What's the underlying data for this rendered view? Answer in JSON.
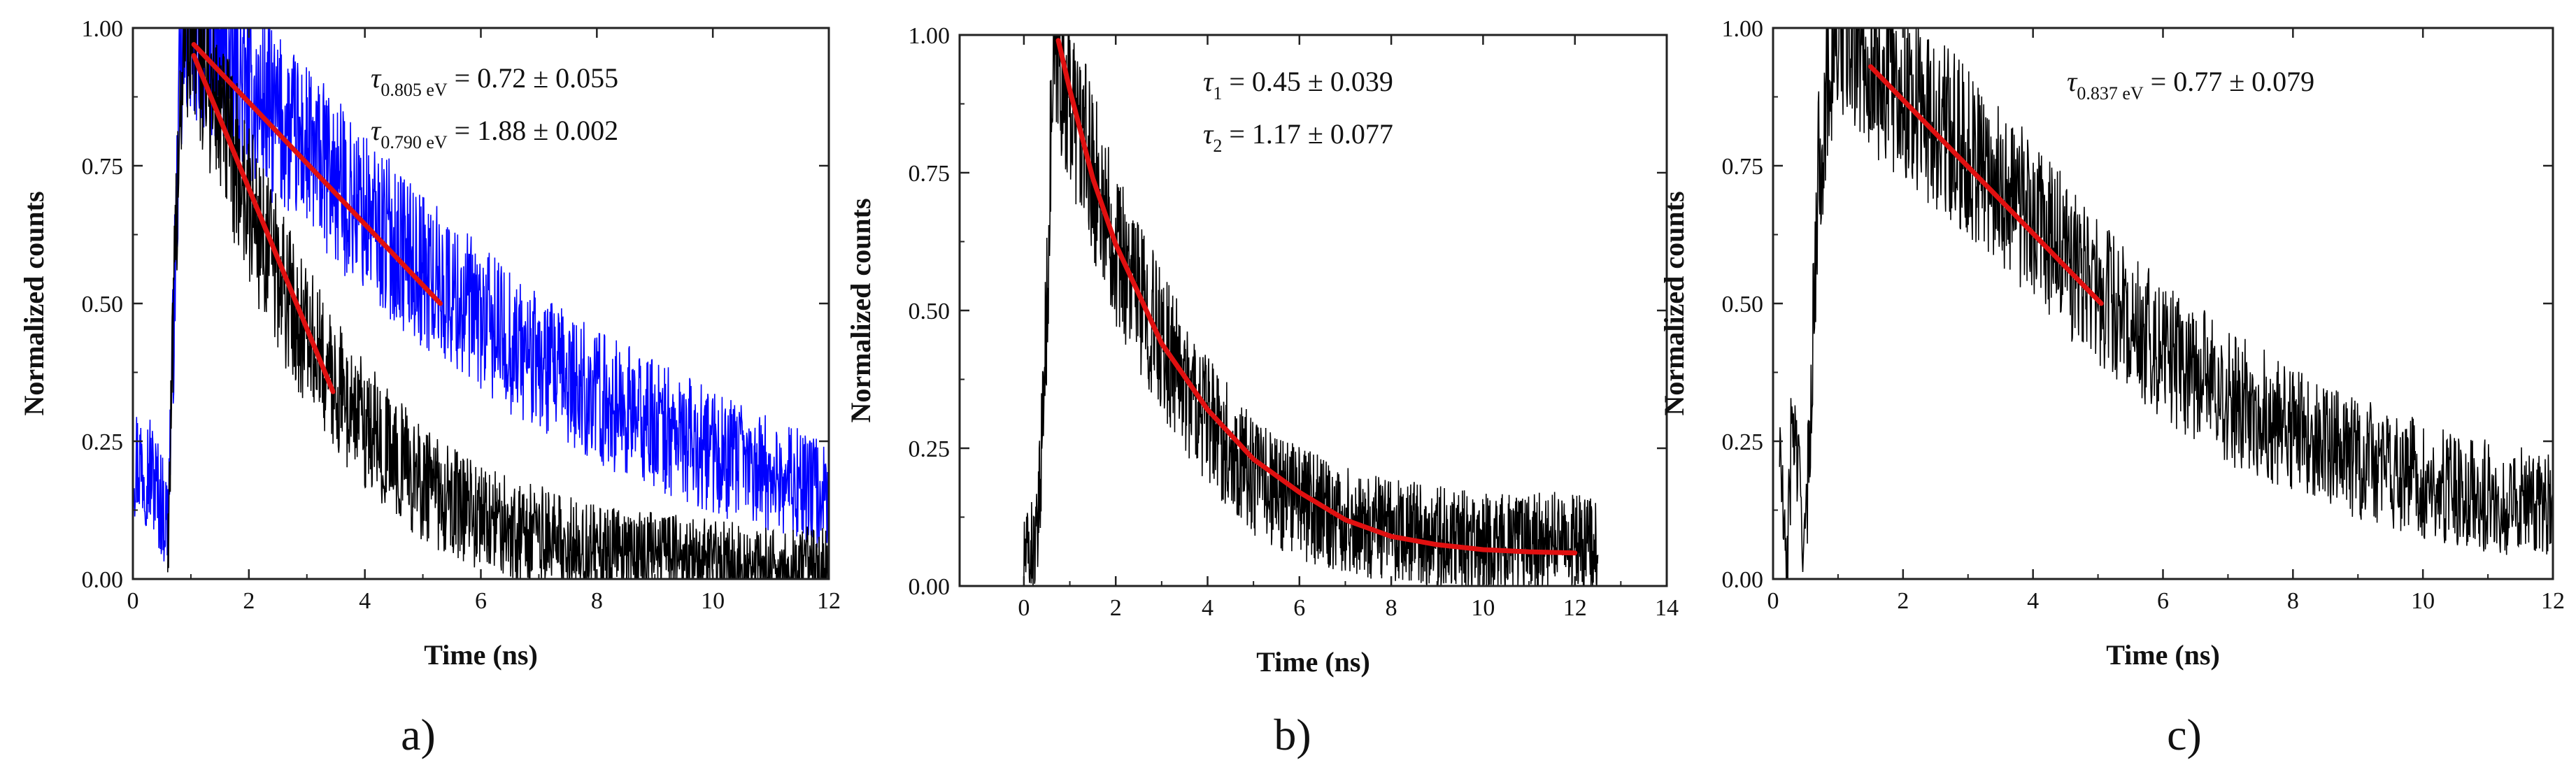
{
  "chart_data": [
    {
      "type": "line",
      "panel_label": "a)",
      "xlabel": "Time (ns)",
      "ylabel": "Normalized counts",
      "xlim": [
        0,
        12
      ],
      "ylim": [
        0,
        1.0
      ],
      "xticks": [
        0,
        2,
        4,
        6,
        8,
        10,
        12
      ],
      "xtick_labels": [
        "0",
        "2",
        "4",
        "6",
        "8",
        "10",
        "12"
      ],
      "yticks": [
        0,
        0.25,
        0.5,
        0.75,
        1.0
      ],
      "ytick_labels": [
        "0.00",
        "0.25",
        "0.50",
        "0.75",
        "1.00"
      ],
      "series": [
        {
          "color": "#0000ff",
          "kind": "data",
          "x": [
            0,
            0.3,
            0.6,
            0.7,
            0.8,
            0.9,
            1.0,
            1.5,
            2,
            3,
            4,
            5,
            6,
            7,
            8,
            9,
            10,
            11,
            12
          ],
          "y": [
            0.22,
            0.2,
            0.1,
            0.45,
            0.85,
            0.97,
            1.0,
            0.95,
            0.88,
            0.78,
            0.66,
            0.56,
            0.47,
            0.39,
            0.33,
            0.28,
            0.23,
            0.19,
            0.15
          ]
        },
        {
          "color": "#000000",
          "kind": "data",
          "x": [
            0.6,
            0.7,
            0.8,
            0.9,
            1.0,
            1.5,
            2,
            2.5,
            3,
            3.5,
            4,
            5,
            6,
            7,
            8,
            9,
            10,
            11,
            12
          ],
          "y": [
            0.05,
            0.45,
            0.85,
            0.97,
            1.0,
            0.84,
            0.68,
            0.55,
            0.44,
            0.35,
            0.28,
            0.17,
            0.11,
            0.08,
            0.05,
            0.04,
            0.03,
            0.02,
            0.02
          ]
        },
        {
          "color": "#e01010",
          "kind": "fit",
          "x": [
            1.05,
            5.3
          ],
          "y": [
            0.97,
            0.5
          ]
        },
        {
          "color": "#e01010",
          "kind": "fit",
          "x": [
            1.05,
            3.45
          ],
          "y": [
            0.95,
            0.34
          ]
        }
      ],
      "annotations": [
        {
          "symbol": "τ",
          "subscript": "0.805 eV",
          "text": " = 0.72 ± 0.055"
        },
        {
          "symbol": "τ",
          "subscript": "0.790 eV",
          "text": " = 1.88 ± 0.002"
        }
      ]
    },
    {
      "type": "line",
      "panel_label": "b)",
      "xlabel": "Time (ns)",
      "ylabel": "Normalized counts",
      "xlim": [
        -1.4,
        14
      ],
      "ylim": [
        0,
        1.0
      ],
      "xticks": [
        0,
        2,
        4,
        6,
        8,
        10,
        12,
        14
      ],
      "xtick_labels": [
        "0",
        "2",
        "4",
        "6",
        "8",
        "10",
        "12",
        "14"
      ],
      "yticks": [
        0,
        0.25,
        0.5,
        0.75,
        1.0
      ],
      "ytick_labels": [
        "0.00",
        "0.25",
        "0.50",
        "0.75",
        "1.00"
      ],
      "series": [
        {
          "color": "#000000",
          "kind": "data",
          "x": [
            0,
            0.3,
            0.5,
            0.6,
            0.7,
            0.8,
            1.0,
            1.5,
            2,
            3,
            4,
            5,
            6,
            7,
            8,
            9,
            10,
            11,
            12,
            12.5
          ],
          "y": [
            0.05,
            0.08,
            0.5,
            0.85,
            0.98,
            0.95,
            0.88,
            0.75,
            0.62,
            0.44,
            0.3,
            0.2,
            0.15,
            0.12,
            0.1,
            0.09,
            0.08,
            0.08,
            0.08,
            0.07
          ]
        },
        {
          "color": "#e01010",
          "kind": "fit",
          "x": [
            0.75,
            1,
            1.5,
            2,
            3,
            4,
            5,
            6,
            7,
            8,
            9,
            10,
            11,
            12
          ],
          "y": [
            0.99,
            0.9,
            0.74,
            0.62,
            0.44,
            0.32,
            0.23,
            0.17,
            0.12,
            0.09,
            0.075,
            0.066,
            0.062,
            0.06
          ]
        }
      ],
      "annotations": [
        {
          "symbol": "τ",
          "subscript": "1",
          "text": " = 0.45 ± 0.039"
        },
        {
          "symbol": "τ",
          "subscript": "2",
          "text": " = 1.17 ± 0.077"
        }
      ]
    },
    {
      "type": "line",
      "panel_label": "c)",
      "xlabel": "Time (ns)",
      "ylabel": "Normalized counts",
      "xlim": [
        0,
        12
      ],
      "ylim": [
        0,
        1.0
      ],
      "xticks": [
        0,
        2,
        4,
        6,
        8,
        10,
        12
      ],
      "xtick_labels": [
        "0",
        "2",
        "4",
        "6",
        "8",
        "10",
        "12"
      ],
      "yticks": [
        0,
        0.25,
        0.5,
        0.75,
        1.0
      ],
      "ytick_labels": [
        "0.00",
        "0.25",
        "0.50",
        "0.75",
        "1.00"
      ],
      "series": [
        {
          "color": "#000000",
          "kind": "data",
          "x": [
            0.1,
            0.2,
            0.3,
            0.5,
            0.7,
            0.9,
            1.1,
            1.3,
            1.5,
            2,
            3,
            4,
            5,
            6,
            7,
            8,
            9,
            10,
            11,
            12
          ],
          "y": [
            0.25,
            0.0,
            0.3,
            0.05,
            0.75,
            0.96,
            1.0,
            0.98,
            0.94,
            0.88,
            0.78,
            0.65,
            0.52,
            0.42,
            0.33,
            0.27,
            0.22,
            0.18,
            0.15,
            0.13
          ]
        },
        {
          "color": "#e01010",
          "kind": "fit",
          "x": [
            1.5,
            5.05
          ],
          "y": [
            0.93,
            0.5
          ]
        }
      ],
      "annotations": [
        {
          "symbol": "τ",
          "subscript": "0.837 eV",
          "text": " = 0.77 ± 0.079"
        }
      ]
    }
  ]
}
